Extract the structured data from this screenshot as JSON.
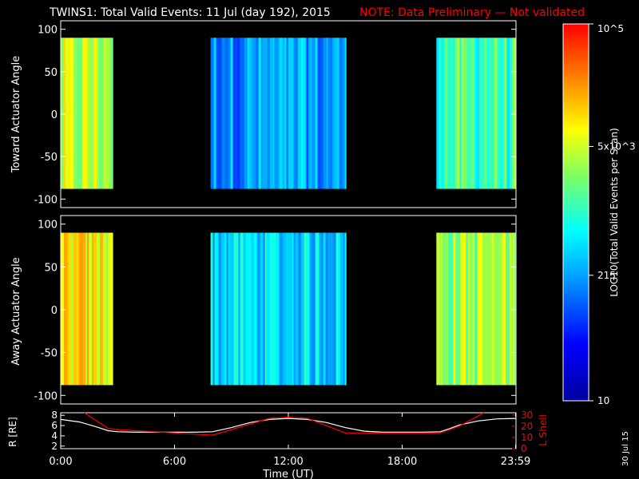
{
  "header": {
    "title": "TWINS1: Total Valid Events: 11 Jul (day 192), 2015",
    "note": "NOTE: Data Preliminary — Not validated"
  },
  "footer": {
    "date_stamp": "30 Jul 15"
  },
  "colorbar": {
    "label": "LOG10(Total Valid Events per Scan)",
    "tick_labels": [
      "10",
      "215",
      "5x10^3",
      "10^5"
    ],
    "tick_values": [
      10,
      215,
      5000,
      100000
    ],
    "scale": "log",
    "range": [
      10,
      100000
    ],
    "palette": "rainbow"
  },
  "colors": {
    "background": "#000000",
    "axes": "#ffffff",
    "note": "#ff0000",
    "r_line": "#ffffff",
    "lshell_line": "#ff0000"
  },
  "chart_data": [
    {
      "type": "heatmap",
      "panel": "top",
      "ylabel": "Toward Actuator Angle",
      "ylim": [
        -110,
        110
      ],
      "y_ticks": [
        100,
        50,
        0,
        -50,
        -100
      ],
      "data_y_range": [
        -88,
        90
      ],
      "x_range_hours": [
        0,
        24
      ],
      "segments": [
        {
          "start_hour": 0.0,
          "end_hour": 2.75,
          "dominant_log10": 3.6
        },
        {
          "start_hour": 7.9,
          "end_hour": 15.05,
          "dominant_log10": 2.3
        },
        {
          "start_hour": 19.8,
          "end_hour": 23.99,
          "dominant_log10": 3.1
        }
      ]
    },
    {
      "type": "heatmap",
      "panel": "middle",
      "ylabel": "Away Actuator Angle",
      "ylim": [
        -110,
        110
      ],
      "y_ticks": [
        100,
        50,
        0,
        -50,
        -100
      ],
      "data_y_range": [
        -88,
        90
      ],
      "x_range_hours": [
        0,
        24
      ],
      "segments": [
        {
          "start_hour": 0.0,
          "end_hour": 2.75,
          "dominant_log10": 3.9
        },
        {
          "start_hour": 7.9,
          "end_hour": 15.05,
          "dominant_log10": 2.6
        },
        {
          "start_hour": 19.8,
          "end_hour": 23.99,
          "dominant_log10": 3.5
        }
      ]
    },
    {
      "type": "line",
      "panel": "bottom",
      "xlabel": "Time (UT)",
      "x_tick_labels": [
        "0:00",
        "6:00",
        "12:00",
        "18:00",
        "23:59"
      ],
      "x_tick_hours": [
        0,
        6,
        12,
        18,
        23.98
      ],
      "ylabel_left": "R [RE]",
      "ylim_left": [
        1.5,
        8.5
      ],
      "y_ticks_left": [
        2,
        4,
        6,
        8
      ],
      "ylabel_right": "L Shell",
      "ylim_right": [
        0,
        32
      ],
      "y_ticks_right": [
        0,
        10,
        20,
        30
      ],
      "series": [
        {
          "name": "R [RE]",
          "axis": "left",
          "x": [
            0,
            1,
            2,
            2.5,
            3,
            4,
            5,
            6,
            7,
            8,
            9,
            10,
            11,
            12,
            13,
            14,
            15,
            16,
            17,
            18,
            19,
            20,
            20.5,
            21,
            22,
            23,
            23.99
          ],
          "y": [
            7.2,
            6.7,
            5.6,
            5.0,
            4.8,
            4.7,
            4.7,
            4.7,
            4.7,
            4.8,
            5.6,
            6.6,
            7.2,
            7.4,
            7.2,
            6.6,
            5.6,
            4.9,
            4.7,
            4.7,
            4.7,
            4.8,
            5.4,
            6.1,
            6.9,
            7.3,
            7.4
          ]
        },
        {
          "name": "L Shell",
          "axis": "right",
          "x": [
            1.25,
            2.5,
            3,
            8,
            11,
            12,
            13,
            15,
            20,
            21,
            22,
            22.3
          ],
          "y": [
            32,
            18,
            17,
            12,
            27,
            28,
            27,
            14,
            14,
            20,
            29,
            32
          ]
        }
      ]
    }
  ]
}
